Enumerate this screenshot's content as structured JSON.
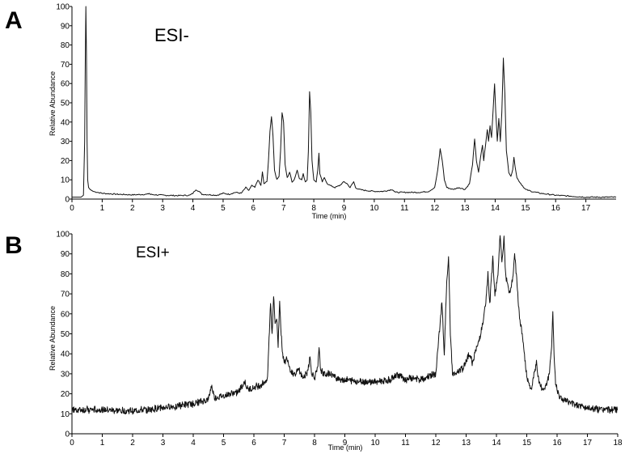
{
  "chart_data": [
    {
      "type": "line",
      "panel_label": "A",
      "title": "ESI-",
      "xlabel": "Time (min)",
      "ylabel": "Relative Abundance",
      "xlim": [
        0,
        18
      ],
      "ylim": [
        0,
        100
      ],
      "xticks": [
        0,
        1,
        2,
        3,
        4,
        5,
        6,
        7,
        8,
        9,
        10,
        11,
        12,
        13,
        14,
        15,
        16,
        17
      ],
      "yticks": [
        0,
        10,
        20,
        30,
        40,
        50,
        60,
        70,
        80,
        90,
        100
      ],
      "grid": false,
      "series": [
        {
          "values": [
            [
              0,
              1
            ],
            [
              0.3,
              1
            ],
            [
              0.38,
              2
            ],
            [
              0.42,
              30
            ],
            [
              0.44,
              70
            ],
            [
              0.46,
              100
            ],
            [
              0.48,
              75
            ],
            [
              0.5,
              30
            ],
            [
              0.52,
              10
            ],
            [
              0.55,
              6
            ],
            [
              0.6,
              5
            ],
            [
              0.7,
              4
            ],
            [
              1.0,
              3
            ],
            [
              1.5,
              2.5
            ],
            [
              2.0,
              2.2
            ],
            [
              2.5,
              2.5
            ],
            [
              2.55,
              3
            ],
            [
              2.6,
              2.4
            ],
            [
              3.0,
              2
            ],
            [
              3.5,
              1.8
            ],
            [
              3.9,
              2
            ],
            [
              4.0,
              3
            ],
            [
              4.1,
              5
            ],
            [
              4.2,
              4
            ],
            [
              4.3,
              2.5
            ],
            [
              4.8,
              2
            ],
            [
              5.0,
              3
            ],
            [
              5.2,
              2.5
            ],
            [
              5.4,
              3.5
            ],
            [
              5.6,
              3
            ],
            [
              5.75,
              6
            ],
            [
              5.85,
              4.5
            ],
            [
              5.95,
              7
            ],
            [
              6.05,
              6
            ],
            [
              6.15,
              10
            ],
            [
              6.25,
              7
            ],
            [
              6.3,
              14
            ],
            [
              6.35,
              8
            ],
            [
              6.45,
              9
            ],
            [
              6.5,
              20
            ],
            [
              6.55,
              35
            ],
            [
              6.6,
              43
            ],
            [
              6.65,
              33
            ],
            [
              6.7,
              15
            ],
            [
              6.78,
              10
            ],
            [
              6.85,
              12
            ],
            [
              6.9,
              25
            ],
            [
              6.95,
              45
            ],
            [
              7.0,
              40
            ],
            [
              7.05,
              18
            ],
            [
              7.12,
              11
            ],
            [
              7.2,
              14
            ],
            [
              7.28,
              9
            ],
            [
              7.35,
              10
            ],
            [
              7.45,
              15
            ],
            [
              7.52,
              11
            ],
            [
              7.6,
              10
            ],
            [
              7.65,
              13
            ],
            [
              7.72,
              9
            ],
            [
              7.78,
              10
            ],
            [
              7.82,
              25
            ],
            [
              7.86,
              56
            ],
            [
              7.9,
              45
            ],
            [
              7.94,
              20
            ],
            [
              8.0,
              10
            ],
            [
              8.08,
              9
            ],
            [
              8.13,
              15
            ],
            [
              8.17,
              24
            ],
            [
              8.2,
              13
            ],
            [
              8.28,
              9
            ],
            [
              8.35,
              11
            ],
            [
              8.45,
              8
            ],
            [
              8.55,
              7
            ],
            [
              8.7,
              6
            ],
            [
              8.85,
              7
            ],
            [
              9.0,
              9
            ],
            [
              9.1,
              8
            ],
            [
              9.2,
              6
            ],
            [
              9.32,
              9
            ],
            [
              9.38,
              6
            ],
            [
              9.5,
              5
            ],
            [
              9.7,
              4.5
            ],
            [
              10.0,
              4
            ],
            [
              10.3,
              4
            ],
            [
              10.6,
              5
            ],
            [
              10.7,
              3.5
            ],
            [
              11.0,
              3.5
            ],
            [
              11.5,
              3.5
            ],
            [
              11.8,
              4
            ],
            [
              12.0,
              6
            ],
            [
              12.1,
              15
            ],
            [
              12.18,
              26
            ],
            [
              12.25,
              20
            ],
            [
              12.32,
              10
            ],
            [
              12.4,
              6
            ],
            [
              12.6,
              5
            ],
            [
              12.8,
              6
            ],
            [
              13.0,
              5
            ],
            [
              13.15,
              8
            ],
            [
              13.25,
              18
            ],
            [
              13.32,
              31
            ],
            [
              13.38,
              20
            ],
            [
              13.45,
              14
            ],
            [
              13.52,
              22
            ],
            [
              13.58,
              28
            ],
            [
              13.62,
              20
            ],
            [
              13.68,
              28
            ],
            [
              13.74,
              36
            ],
            [
              13.78,
              30
            ],
            [
              13.83,
              38
            ],
            [
              13.88,
              32
            ],
            [
              13.93,
              46
            ],
            [
              13.98,
              60
            ],
            [
              14.02,
              45
            ],
            [
              14.07,
              30
            ],
            [
              14.12,
              42
            ],
            [
              14.17,
              30
            ],
            [
              14.22,
              45
            ],
            [
              14.27,
              73
            ],
            [
              14.32,
              55
            ],
            [
              14.37,
              25
            ],
            [
              14.45,
              14
            ],
            [
              14.52,
              12
            ],
            [
              14.58,
              15
            ],
            [
              14.62,
              22
            ],
            [
              14.66,
              17
            ],
            [
              14.72,
              11
            ],
            [
              14.85,
              8
            ],
            [
              15.0,
              5
            ],
            [
              15.2,
              4
            ],
            [
              15.5,
              3
            ],
            [
              16.0,
              2
            ],
            [
              16.5,
              1.5
            ],
            [
              17.0,
              1
            ],
            [
              18.0,
              1
            ]
          ]
        }
      ]
    },
    {
      "type": "line",
      "panel_label": "B",
      "title": "ESI+",
      "xlabel": "Time (min)",
      "ylabel": "Relative Abundance",
      "xlim": [
        0,
        18
      ],
      "ylim": [
        0,
        100
      ],
      "xticks": [
        0,
        1,
        2,
        3,
        4,
        5,
        6,
        7,
        8,
        9,
        10,
        11,
        12,
        13,
        14,
        15,
        16,
        17,
        18
      ],
      "yticks": [
        0,
        10,
        20,
        30,
        40,
        50,
        60,
        70,
        80,
        90,
        100
      ],
      "grid": false,
      "noise_amplitude": 2,
      "series": [
        {
          "values": [
            [
              0,
              12
            ],
            [
              0.5,
              12
            ],
            [
              1.0,
              12
            ],
            [
              1.5,
              11.5
            ],
            [
              2.0,
              11.5
            ],
            [
              2.5,
              12
            ],
            [
              3.0,
              13
            ],
            [
              3.5,
              14
            ],
            [
              4.0,
              15
            ],
            [
              4.5,
              17
            ],
            [
              4.6,
              24
            ],
            [
              4.7,
              18
            ],
            [
              5.0,
              19
            ],
            [
              5.5,
              21
            ],
            [
              5.7,
              26
            ],
            [
              5.8,
              22
            ],
            [
              6.0,
              23
            ],
            [
              6.3,
              25
            ],
            [
              6.45,
              28
            ],
            [
              6.55,
              66
            ],
            [
              6.6,
              50
            ],
            [
              6.65,
              69
            ],
            [
              6.7,
              55
            ],
            [
              6.75,
              58
            ],
            [
              6.8,
              44
            ],
            [
              6.85,
              67
            ],
            [
              6.9,
              50
            ],
            [
              6.95,
              40
            ],
            [
              7.0,
              35
            ],
            [
              7.1,
              38
            ],
            [
              7.2,
              32
            ],
            [
              7.3,
              30
            ],
            [
              7.5,
              32
            ],
            [
              7.6,
              28
            ],
            [
              7.75,
              30
            ],
            [
              7.85,
              38
            ],
            [
              7.9,
              31
            ],
            [
              8.0,
              28
            ],
            [
              8.1,
              32
            ],
            [
              8.15,
              42
            ],
            [
              8.2,
              32
            ],
            [
              8.3,
              30
            ],
            [
              8.5,
              30
            ],
            [
              8.7,
              28
            ],
            [
              9.0,
              27
            ],
            [
              9.5,
              26
            ],
            [
              10.0,
              26
            ],
            [
              10.5,
              27
            ],
            [
              10.7,
              30
            ],
            [
              10.9,
              28
            ],
            [
              11.0,
              27
            ],
            [
              11.2,
              28
            ],
            [
              11.5,
              27
            ],
            [
              11.8,
              29
            ],
            [
              12.0,
              30
            ],
            [
              12.1,
              48
            ],
            [
              12.2,
              66
            ],
            [
              12.28,
              40
            ],
            [
              12.35,
              72
            ],
            [
              12.42,
              88
            ],
            [
              12.48,
              50
            ],
            [
              12.55,
              30
            ],
            [
              12.7,
              30
            ],
            [
              12.9,
              33
            ],
            [
              13.1,
              40
            ],
            [
              13.2,
              36
            ],
            [
              13.4,
              45
            ],
            [
              13.55,
              55
            ],
            [
              13.65,
              65
            ],
            [
              13.72,
              80
            ],
            [
              13.78,
              65
            ],
            [
              13.88,
              88
            ],
            [
              13.95,
              70
            ],
            [
              14.05,
              80
            ],
            [
              14.12,
              100
            ],
            [
              14.18,
              85
            ],
            [
              14.25,
              98
            ],
            [
              14.3,
              80
            ],
            [
              14.35,
              75
            ],
            [
              14.45,
              70
            ],
            [
              14.55,
              80
            ],
            [
              14.6,
              90
            ],
            [
              14.68,
              75
            ],
            [
              14.75,
              60
            ],
            [
              14.85,
              50
            ],
            [
              14.95,
              35
            ],
            [
              15.05,
              25
            ],
            [
              15.15,
              22
            ],
            [
              15.25,
              30
            ],
            [
              15.32,
              36
            ],
            [
              15.38,
              28
            ],
            [
              15.45,
              24
            ],
            [
              15.55,
              22
            ],
            [
              15.65,
              25
            ],
            [
              15.75,
              30
            ],
            [
              15.82,
              45
            ],
            [
              15.86,
              61
            ],
            [
              15.9,
              40
            ],
            [
              15.95,
              25
            ],
            [
              16.1,
              18
            ],
            [
              16.5,
              15
            ],
            [
              17.0,
              13
            ],
            [
              17.5,
              12
            ],
            [
              18.0,
              12
            ]
          ]
        }
      ]
    }
  ]
}
